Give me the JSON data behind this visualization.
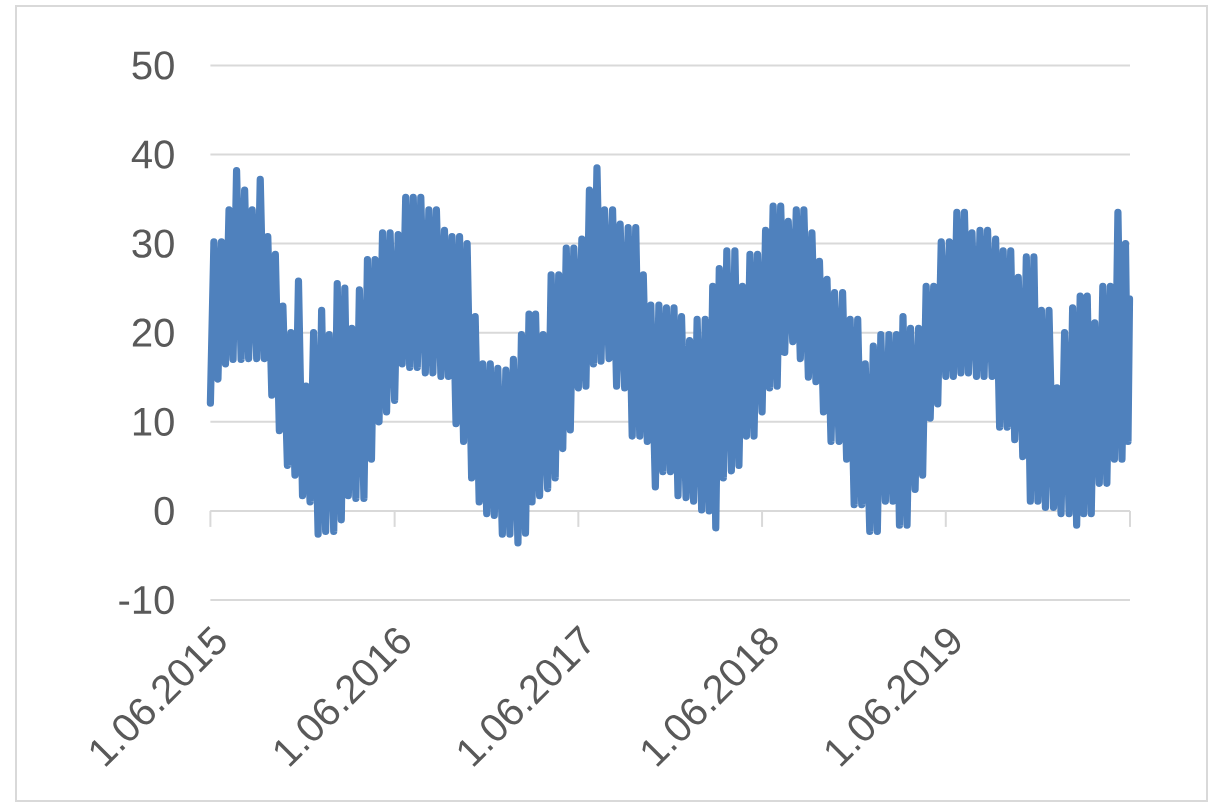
{
  "chart_data": {
    "type": "line",
    "x": [
      "2015-06-01",
      "2015-06-08",
      "2015-06-16",
      "2015-06-23",
      "2015-07-01",
      "2015-07-08",
      "2015-07-16",
      "2015-07-23",
      "2015-08-01",
      "2015-08-08",
      "2015-08-16",
      "2015-08-23",
      "2015-09-01",
      "2015-09-08",
      "2015-09-16",
      "2015-09-23",
      "2015-10-01",
      "2015-10-08",
      "2015-10-16",
      "2015-10-23",
      "2015-11-01",
      "2015-11-08",
      "2015-11-16",
      "2015-11-23",
      "2015-12-01",
      "2015-12-08",
      "2015-12-16",
      "2015-12-23",
      "2016-01-01",
      "2016-01-08",
      "2016-01-16",
      "2016-01-23",
      "2016-02-01",
      "2016-02-08",
      "2016-02-16",
      "2016-02-23",
      "2016-03-01",
      "2016-03-08",
      "2016-03-16",
      "2016-03-23",
      "2016-04-01",
      "2016-04-08",
      "2016-04-16",
      "2016-04-23",
      "2016-05-01",
      "2016-05-08",
      "2016-05-16",
      "2016-05-23",
      "2016-06-01",
      "2016-06-08",
      "2016-06-16",
      "2016-06-23",
      "2016-07-01",
      "2016-07-08",
      "2016-07-16",
      "2016-07-23",
      "2016-08-01",
      "2016-08-08",
      "2016-08-16",
      "2016-08-23",
      "2016-09-01",
      "2016-09-08",
      "2016-09-16",
      "2016-09-23",
      "2016-10-01",
      "2016-10-08",
      "2016-10-16",
      "2016-10-23",
      "2016-11-01",
      "2016-11-08",
      "2016-11-16",
      "2016-11-23",
      "2016-12-01",
      "2016-12-08",
      "2016-12-16",
      "2016-12-23",
      "2017-01-01",
      "2017-01-08",
      "2017-01-16",
      "2017-01-23",
      "2017-02-01",
      "2017-02-08",
      "2017-02-16",
      "2017-02-23",
      "2017-03-01",
      "2017-03-08",
      "2017-03-16",
      "2017-03-23",
      "2017-04-01",
      "2017-04-08",
      "2017-04-16",
      "2017-04-23",
      "2017-05-01",
      "2017-05-08",
      "2017-05-16",
      "2017-05-23",
      "2017-06-01",
      "2017-06-08",
      "2017-06-16",
      "2017-06-23",
      "2017-07-01",
      "2017-07-08",
      "2017-07-16",
      "2017-07-23",
      "2017-08-01",
      "2017-08-08",
      "2017-08-16",
      "2017-08-23",
      "2017-09-01",
      "2017-09-08",
      "2017-09-16",
      "2017-09-23",
      "2017-10-01",
      "2017-10-08",
      "2017-10-16",
      "2017-10-23",
      "2017-11-01",
      "2017-11-08",
      "2017-11-16",
      "2017-11-23",
      "2017-12-01",
      "2017-12-08",
      "2017-12-16",
      "2017-12-23",
      "2018-01-01",
      "2018-01-08",
      "2018-01-16",
      "2018-01-23",
      "2018-02-01",
      "2018-02-08",
      "2018-02-16",
      "2018-02-23",
      "2018-03-01",
      "2018-03-08",
      "2018-03-16",
      "2018-03-23",
      "2018-04-01",
      "2018-04-08",
      "2018-04-16",
      "2018-04-23",
      "2018-05-01",
      "2018-05-08",
      "2018-05-16",
      "2018-05-23",
      "2018-06-01",
      "2018-06-08",
      "2018-06-16",
      "2018-06-23",
      "2018-07-01",
      "2018-07-08",
      "2018-07-16",
      "2018-07-23",
      "2018-08-01",
      "2018-08-08",
      "2018-08-16",
      "2018-08-23",
      "2018-09-01",
      "2018-09-08",
      "2018-09-16",
      "2018-09-23",
      "2018-10-01",
      "2018-10-08",
      "2018-10-16",
      "2018-10-23",
      "2018-11-01",
      "2018-11-08",
      "2018-11-16",
      "2018-11-23",
      "2018-12-01",
      "2018-12-08",
      "2018-12-16",
      "2018-12-23",
      "2019-01-01",
      "2019-01-08",
      "2019-01-16",
      "2019-01-23",
      "2019-02-01",
      "2019-02-08",
      "2019-02-16",
      "2019-02-23",
      "2019-03-01",
      "2019-03-08",
      "2019-03-16",
      "2019-03-23",
      "2019-04-01",
      "2019-04-08",
      "2019-04-16",
      "2019-04-23",
      "2019-05-01",
      "2019-05-08",
      "2019-05-16",
      "2019-05-23",
      "2019-06-01",
      "2019-06-08",
      "2019-06-16",
      "2019-06-23",
      "2019-07-01",
      "2019-07-08",
      "2019-07-16",
      "2019-07-23",
      "2019-08-01",
      "2019-08-08",
      "2019-08-16",
      "2019-08-23",
      "2019-09-01",
      "2019-09-08",
      "2019-09-16",
      "2019-09-23",
      "2019-10-01",
      "2019-10-08",
      "2019-10-16",
      "2019-10-23",
      "2019-11-01",
      "2019-11-08",
      "2019-11-16",
      "2019-11-23",
      "2019-12-01",
      "2019-12-08",
      "2019-12-16",
      "2019-12-23",
      "2020-01-01",
      "2020-01-08",
      "2020-01-16",
      "2020-01-23",
      "2020-02-01",
      "2020-02-08",
      "2020-02-16",
      "2020-02-23",
      "2020-03-01",
      "2020-03-08",
      "2020-03-16",
      "2020-03-23",
      "2020-04-01",
      "2020-04-08",
      "2020-04-16",
      "2020-04-23",
      "2020-05-01",
      "2020-05-08",
      "2020-05-16",
      "2020-05-23",
      "2020-05-28",
      "2020-05-31"
    ],
    "values": [
      12.1,
      30.2,
      14.8,
      30.2,
      16.5,
      33.8,
      17,
      38.2,
      17,
      36,
      17.1,
      33.8,
      17.1,
      37.2,
      17.1,
      30.8,
      13,
      28.8,
      9,
      23,
      5.1,
      20,
      4,
      25.8,
      1.7,
      14,
      1,
      20,
      -2.6,
      22.5,
      -2.3,
      19.8,
      -2.3,
      25.5,
      -1,
      25,
      1.7,
      20.5,
      1.4,
      24.8,
      1.4,
      28.2,
      5.8,
      28.2,
      10,
      31.2,
      11.1,
      31.2,
      12.4,
      31,
      16.5,
      35.2,
      16.1,
      35.2,
      16.1,
      35.2,
      15.5,
      33.8,
      15.5,
      33.8,
      15.1,
      31.5,
      15.1,
      30.8,
      9.8,
      30.8,
      7.8,
      30,
      3.7,
      21.8,
      1,
      16.5,
      -0.3,
      16.5,
      -0.5,
      16,
      -2.6,
      15.8,
      -2.6,
      17,
      -3.6,
      19.8,
      -2.5,
      22.1,
      1,
      22.1,
      1.7,
      19.8,
      2.5,
      26.5,
      3.7,
      26.5,
      7,
      29.5,
      9.1,
      29.5,
      13.8,
      30.5,
      14,
      36,
      16.5,
      38.5,
      16.8,
      33.8,
      17.1,
      33.8,
      14,
      32.2,
      13.8,
      31.8,
      8.4,
      31.8,
      8.4,
      26.5,
      7.8,
      23.1,
      2.7,
      23.1,
      4.4,
      22.8,
      4.4,
      22.8,
      1.7,
      21.8,
      1.5,
      19.1,
      1.1,
      21.5,
      0.1,
      21.5,
      0,
      25.2,
      -1.9,
      27.2,
      3.7,
      29.2,
      4.5,
      29.2,
      5.1,
      25.2,
      8.4,
      28.8,
      8.4,
      28.8,
      11.1,
      31.5,
      13.8,
      34.2,
      14,
      34.2,
      17.8,
      32.5,
      19,
      33.8,
      17.1,
      33.8,
      15,
      31.2,
      14.5,
      28,
      11.1,
      26,
      7.8,
      24.5,
      7.8,
      24.5,
      5.8,
      21.5,
      0.7,
      21.5,
      0.7,
      16.5,
      -2.3,
      18.5,
      -2.3,
      19.8,
      1.1,
      19.8,
      1.1,
      19.8,
      -1.6,
      21.8,
      -1.6,
      20.5,
      2.4,
      20.5,
      4,
      25.2,
      10.4,
      25.2,
      12,
      30.2,
      15.1,
      30.2,
      15.1,
      33.5,
      15.5,
      33.5,
      15.5,
      31.2,
      15.1,
      31.5,
      15.1,
      31.5,
      15.1,
      30.5,
      9.4,
      29.2,
      9.4,
      29.2,
      8,
      26.2,
      6.1,
      28.5,
      1.1,
      28.5,
      1.1,
      22.5,
      0.4,
      22.5,
      0.4,
      13.8,
      -0.3,
      20,
      -0.3,
      22.8,
      -1.6,
      24.1,
      -0.3,
      24.1,
      -0.3,
      21.1,
      3.1,
      25.2,
      3.1,
      25.2,
      5.8,
      33.5,
      5.8,
      30,
      7.8,
      23.8
    ],
    "color": "#4f81bd",
    "xlim": [
      "2015-06-01",
      "2020-06-01"
    ],
    "xticks": [
      {
        "value": "2015-06-01",
        "label": "1.06.2015"
      },
      {
        "value": "2016-06-01",
        "label": "1.06.2016"
      },
      {
        "value": "2017-06-01",
        "label": "1.06.2017"
      },
      {
        "value": "2018-06-01",
        "label": "1.06.2018"
      },
      {
        "value": "2019-06-01",
        "label": "1.06.2019"
      },
      {
        "value": "2020-06-01",
        "label": null
      }
    ],
    "ylim": [
      -10,
      50
    ],
    "yticks": [
      -10,
      0,
      10,
      20,
      30,
      40,
      50
    ],
    "grid": "y",
    "marker": "none",
    "line_style": "solid"
  }
}
